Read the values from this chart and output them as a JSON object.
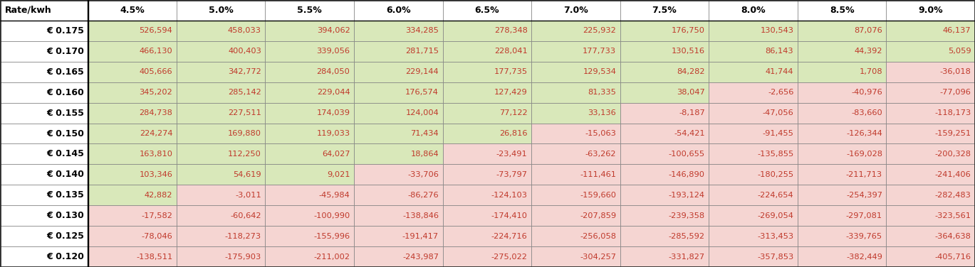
{
  "col_headers": [
    "Rate/kwh",
    "4.5%",
    "5.0%",
    "5.5%",
    "6.0%",
    "6.5%",
    "7.0%",
    "7.5%",
    "8.0%",
    "8.5%",
    "9.0%"
  ],
  "row_labels": [
    "€ 0.175",
    "€ 0.170",
    "€ 0.165",
    "€ 0.160",
    "€ 0.155",
    "€ 0.150",
    "€ 0.145",
    "€ 0.140",
    "€ 0.135",
    "€ 0.130",
    "€ 0.125",
    "€ 0.120"
  ],
  "values": [
    [
      526594,
      458033,
      394062,
      334285,
      278348,
      225932,
      176750,
      130543,
      87076,
      46137
    ],
    [
      466130,
      400403,
      339056,
      281715,
      228041,
      177733,
      130516,
      86143,
      44392,
      5059
    ],
    [
      405666,
      342772,
      284050,
      229144,
      177735,
      129534,
      84282,
      41744,
      1708,
      -36018
    ],
    [
      345202,
      285142,
      229044,
      176574,
      127429,
      81335,
      38047,
      -2656,
      -40976,
      -77096
    ],
    [
      284738,
      227511,
      174039,
      124004,
      77122,
      33136,
      -8187,
      -47056,
      -83660,
      -118173
    ],
    [
      224274,
      169880,
      119033,
      71434,
      26816,
      -15063,
      -54421,
      -91455,
      -126344,
      -159251
    ],
    [
      163810,
      112250,
      64027,
      18864,
      -23491,
      -63262,
      -100655,
      -135855,
      -169028,
      -200328
    ],
    [
      103346,
      54619,
      9021,
      -33706,
      -73797,
      -111461,
      -146890,
      -180255,
      -211713,
      -241406
    ],
    [
      42882,
      -3011,
      -45984,
      -86276,
      -124103,
      -159660,
      -193124,
      -224654,
      -254397,
      -282483
    ],
    [
      -17582,
      -60642,
      -100990,
      -138846,
      -174410,
      -207859,
      -239358,
      -269054,
      -297081,
      -323561
    ],
    [
      -78046,
      -118273,
      -155996,
      -191417,
      -224716,
      -256058,
      -285592,
      -313453,
      -339765,
      -364638
    ],
    [
      -138511,
      -175903,
      -211002,
      -243987,
      -275022,
      -304257,
      -331827,
      -357853,
      -382449,
      -405716
    ]
  ],
  "header_text": "#000000",
  "row_label_text": "#000000",
  "cell_text_color": "#c0392b",
  "cell_text_black": "#000000",
  "green_bg": "#d9e8ba",
  "pink_bg": "#f5d5d2",
  "white_bg": "#ffffff",
  "border_color": "#7f7f7f",
  "thick_border_color": "#2e2e2e"
}
